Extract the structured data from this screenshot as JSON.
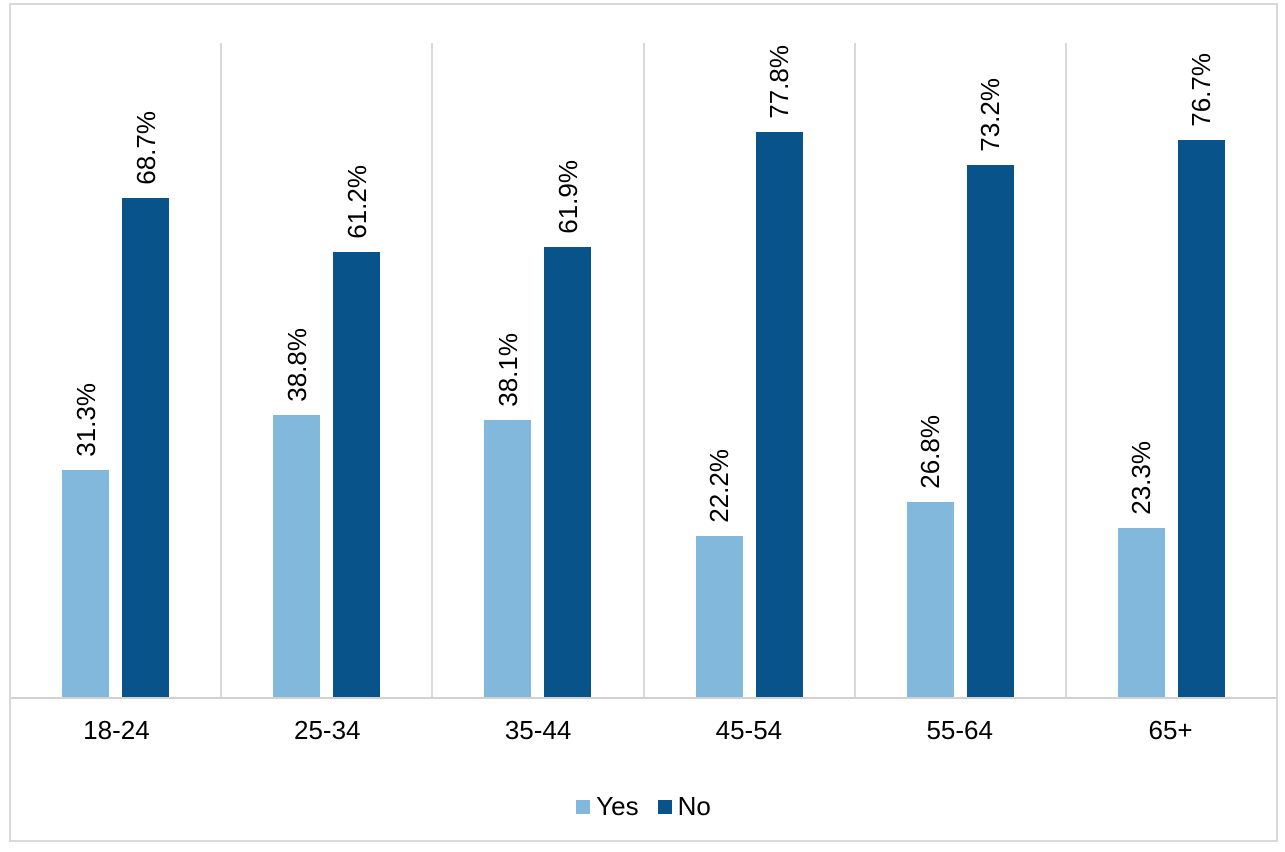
{
  "chart_data": {
    "type": "bar",
    "title": "",
    "xlabel": "",
    "ylabel": "",
    "categories": [
      "18-24",
      "25-34",
      "35-44",
      "45-54",
      "55-64",
      "65+"
    ],
    "series": [
      {
        "name": "Yes",
        "color": "#82B8DB",
        "values": [
          31.3,
          38.8,
          38.1,
          22.2,
          26.8,
          23.3
        ],
        "labels": [
          "31.3%",
          "38.8%",
          "38.1%",
          "22.2%",
          "26.8%",
          "23.3%"
        ]
      },
      {
        "name": "No",
        "color": "#08548A",
        "values": [
          68.7,
          61.2,
          61.9,
          77.8,
          73.2,
          76.7
        ],
        "labels": [
          "68.7%",
          "61.2%",
          "61.9%",
          "77.8%",
          "73.2%",
          "76.7%"
        ]
      }
    ],
    "ylim": [
      0,
      90
    ],
    "grid": "vertical-category-boundaries",
    "data_label_rotation": -90,
    "data_label_position": "outside-end",
    "legend_position": "bottom"
  },
  "styles": {
    "background": "#FFFFFF",
    "frame_border_color": "#D9D9D9",
    "gridline_color": "#D9D9D9",
    "axis_line_color": "#D1D1D1",
    "label_color": "#000000"
  }
}
